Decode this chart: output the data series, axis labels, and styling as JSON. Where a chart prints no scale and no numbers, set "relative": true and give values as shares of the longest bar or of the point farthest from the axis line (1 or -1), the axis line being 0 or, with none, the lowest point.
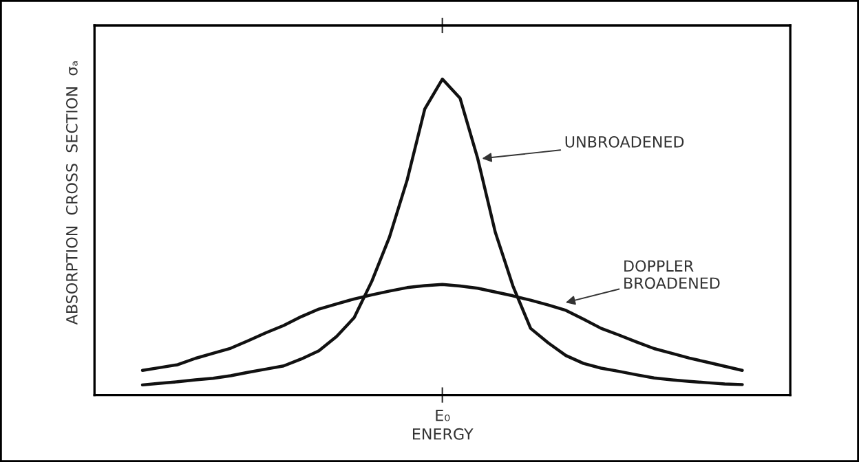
{
  "chart_data": {
    "type": "line",
    "relative": true,
    "xlabel": "ENERGY",
    "ylabel": "ABSORPTION  CROSS  SECTION  σₐ",
    "grid": false,
    "line_style": "solid",
    "categories": [
      null,
      null,
      null,
      null,
      null,
      null,
      null,
      null,
      null,
      null,
      null,
      null,
      null,
      null,
      null,
      null,
      null,
      null,
      null,
      null,
      null,
      null,
      null,
      null,
      null,
      null,
      null,
      null,
      null,
      null,
      null,
      null,
      null,
      null,
      null
    ],
    "series": [
      {
        "color": "#111111",
        "values": [
          0.032,
          0.037,
          0.042,
          0.048,
          0.053,
          0.061,
          0.072,
          0.082,
          0.092,
          0.114,
          0.14,
          0.185,
          0.245,
          0.36,
          0.5,
          0.68,
          0.905,
          1,
          0.94,
          0.749,
          0.515,
          0.345,
          0.211,
          0.165,
          0.125,
          0.1,
          0.085,
          0.075,
          0.064,
          0.054,
          0.048,
          0.043,
          0.039,
          0.035,
          0.033
        ]
      },
      {
        "color": "#111111",
        "values": [
          0.078,
          0.087,
          0.096,
          0.116,
          0.132,
          0.148,
          0.172,
          0.197,
          0.22,
          0.248,
          0.272,
          0.288,
          0.304,
          0.317,
          0.329,
          0.34,
          0.346,
          0.35,
          0.345,
          0.338,
          0.326,
          0.314,
          0.3,
          0.285,
          0.268,
          0.24,
          0.211,
          0.19,
          0.168,
          0.147,
          0.132,
          0.117,
          0.104,
          0.091,
          0.078
        ]
      }
    ],
    "annotations": [
      "E₀",
      "UNBROADENED",
      "DOPPLER\nBROADENED"
    ]
  }
}
